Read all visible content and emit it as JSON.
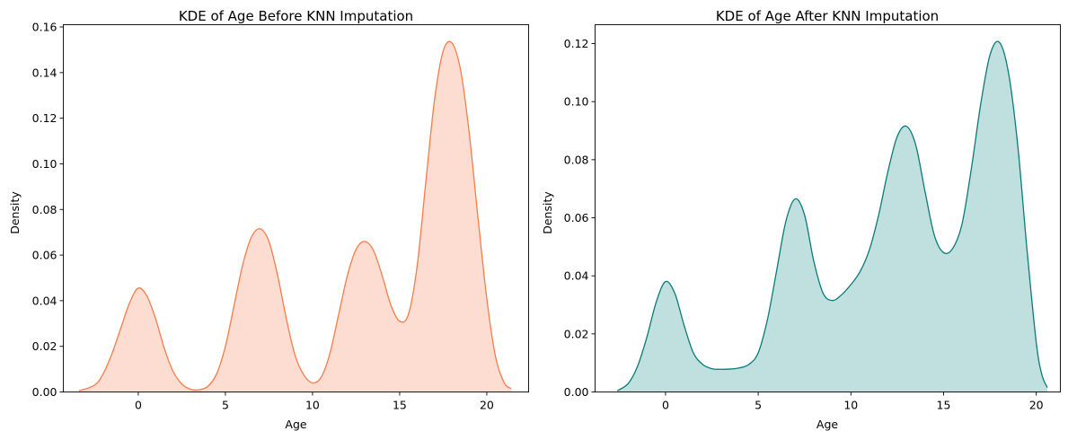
{
  "chart_data": [
    {
      "type": "area",
      "title": "KDE of Age Before KNN Imputation",
      "xlabel": "Age",
      "ylabel": "Density",
      "xlim": [
        -4.3,
        22.4
      ],
      "ylim": [
        0,
        0.161
      ],
      "xticks": [
        0,
        5,
        10,
        15,
        20
      ],
      "yticks": [
        0.0,
        0.02,
        0.04,
        0.06,
        0.08,
        0.1,
        0.12,
        0.14,
        0.16
      ],
      "xtick_labels": [
        "0",
        "5",
        "10",
        "15",
        "20"
      ],
      "ytick_labels": [
        "0.00",
        "0.02",
        "0.04",
        "0.06",
        "0.08",
        "0.10",
        "0.12",
        "0.14",
        "0.16"
      ],
      "line_color": "#f47d4a",
      "fill_color": "#fddcd1",
      "series": [
        {
          "x": [
            -3.4,
            -2.5,
            -2.0,
            -1.5,
            -1.0,
            -0.5,
            0.0,
            0.5,
            1.0,
            1.5,
            2.0,
            2.5,
            3.0,
            3.5,
            4.0,
            4.5,
            5.0,
            5.5,
            6.0,
            6.5,
            7.0,
            7.5,
            8.0,
            8.5,
            9.0,
            9.5,
            10.0,
            10.5,
            11.0,
            11.5,
            12.0,
            12.5,
            13.0,
            13.5,
            14.0,
            14.5,
            15.0,
            15.5,
            16.0,
            16.5,
            17.0,
            17.5,
            18.0,
            18.5,
            19.0,
            19.5,
            20.0,
            20.5,
            21.0,
            21.4
          ],
          "y": [
            0.0005,
            0.003,
            0.0082,
            0.017,
            0.028,
            0.039,
            0.0455,
            0.042,
            0.032,
            0.019,
            0.009,
            0.0035,
            0.0012,
            0.001,
            0.0025,
            0.008,
            0.02,
            0.038,
            0.056,
            0.068,
            0.0715,
            0.066,
            0.051,
            0.032,
            0.016,
            0.0075,
            0.004,
            0.0065,
            0.017,
            0.034,
            0.051,
            0.0625,
            0.066,
            0.062,
            0.051,
            0.038,
            0.031,
            0.034,
            0.055,
            0.092,
            0.128,
            0.1495,
            0.153,
            0.141,
            0.113,
            0.076,
            0.041,
            0.0155,
            0.004,
            0.0015
          ]
        }
      ]
    },
    {
      "type": "area",
      "title": "KDE of Age After KNN Imputation",
      "xlabel": "Age",
      "ylabel": "Density",
      "xlim": [
        -3.8,
        21.3
      ],
      "ylim": [
        0,
        0.1265
      ],
      "xticks": [
        0,
        5,
        10,
        15,
        20
      ],
      "yticks": [
        0.0,
        0.02,
        0.04,
        0.06,
        0.08,
        0.1,
        0.12
      ],
      "xtick_labels": [
        "0",
        "5",
        "10",
        "15",
        "20"
      ],
      "ytick_labels": [
        "0.00",
        "0.02",
        "0.04",
        "0.06",
        "0.08",
        "0.10",
        "0.12"
      ],
      "line_color": "#0b7a78",
      "fill_color": "#bfe0df",
      "series": [
        {
          "x": [
            -2.6,
            -2.0,
            -1.5,
            -1.0,
            -0.5,
            0.0,
            0.5,
            1.0,
            1.5,
            2.0,
            2.5,
            3.0,
            3.5,
            4.0,
            4.5,
            5.0,
            5.5,
            6.0,
            6.5,
            7.0,
            7.5,
            8.0,
            8.5,
            9.0,
            9.5,
            10.0,
            10.5,
            11.0,
            11.5,
            12.0,
            12.5,
            13.0,
            13.5,
            14.0,
            14.5,
            15.0,
            15.5,
            16.0,
            16.5,
            17.0,
            17.5,
            18.0,
            18.5,
            19.0,
            19.5,
            20.0,
            20.3,
            20.6
          ],
          "y": [
            0.0004,
            0.003,
            0.009,
            0.019,
            0.031,
            0.038,
            0.034,
            0.023,
            0.0135,
            0.0095,
            0.008,
            0.0078,
            0.0079,
            0.0083,
            0.0095,
            0.0135,
            0.025,
            0.042,
            0.059,
            0.0665,
            0.061,
            0.045,
            0.034,
            0.0315,
            0.0335,
            0.037,
            0.0415,
            0.049,
            0.061,
            0.076,
            0.088,
            0.0915,
            0.085,
            0.069,
            0.054,
            0.048,
            0.0495,
            0.058,
            0.077,
            0.099,
            0.116,
            0.1205,
            0.11,
            0.085,
            0.049,
            0.017,
            0.006,
            0.0015
          ]
        }
      ]
    }
  ]
}
